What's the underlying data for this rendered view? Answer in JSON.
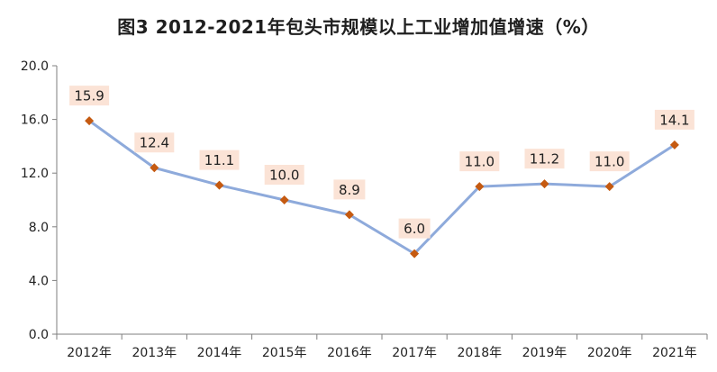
{
  "chart_data": {
    "type": "line",
    "title": "图3 2012-2021年包头市规模以上工业增加值增速（%）",
    "xlabel": "",
    "ylabel": "",
    "categories": [
      "2012年",
      "2013年",
      "2014年",
      "2015年",
      "2016年",
      "2017年",
      "2018年",
      "2019年",
      "2020年",
      "2021年"
    ],
    "series": [
      {
        "values": [
          15.9,
          12.4,
          11.1,
          10.0,
          8.9,
          6.0,
          11.0,
          11.2,
          11.0,
          14.1
        ]
      }
    ],
    "data_labels": [
      "15.9",
      "12.4",
      "11.1",
      "10.0",
      "8.9",
      "6.0",
      "11.0",
      "11.2",
      "11.0",
      "14.1"
    ],
    "y_ticks": [
      "0.0",
      "4.0",
      "8.0",
      "12.0",
      "16.0",
      "20.0"
    ],
    "ylim": [
      0,
      20
    ],
    "grid": false,
    "legend": "none",
    "colors": {
      "line": "#8eaadb",
      "marker": "#c55a11",
      "label_bg": "#fbe3d6",
      "axis": "#7f7f7f"
    }
  }
}
